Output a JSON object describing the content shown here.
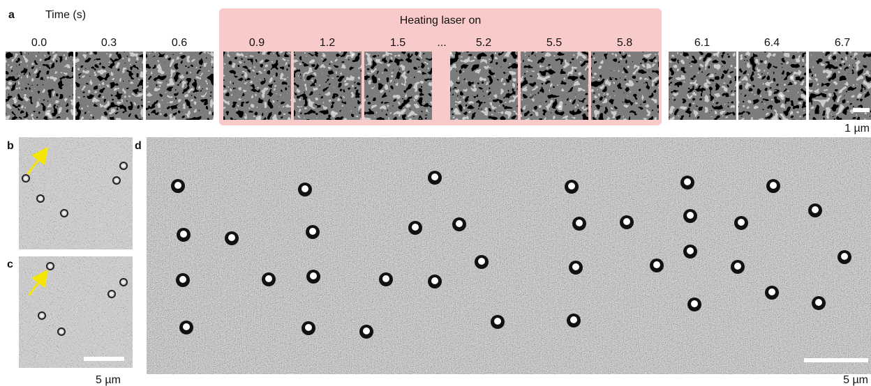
{
  "panel_a": {
    "label": "a",
    "axis_label": "Time (s)",
    "group_label": "Heating laser on",
    "frames": [
      "0.0",
      "0.3",
      "0.6",
      "0.9",
      "1.2",
      "1.5",
      "5.2",
      "5.5",
      "5.8",
      "6.1",
      "6.4",
      "6.7"
    ],
    "ellipsis": "...",
    "scale_label": "1 µm"
  },
  "panel_b": {
    "label": "b"
  },
  "panel_c": {
    "label": "c",
    "scale_label": "5 µm"
  },
  "panel_d": {
    "label": "d",
    "scale_label": "5 µm"
  }
}
